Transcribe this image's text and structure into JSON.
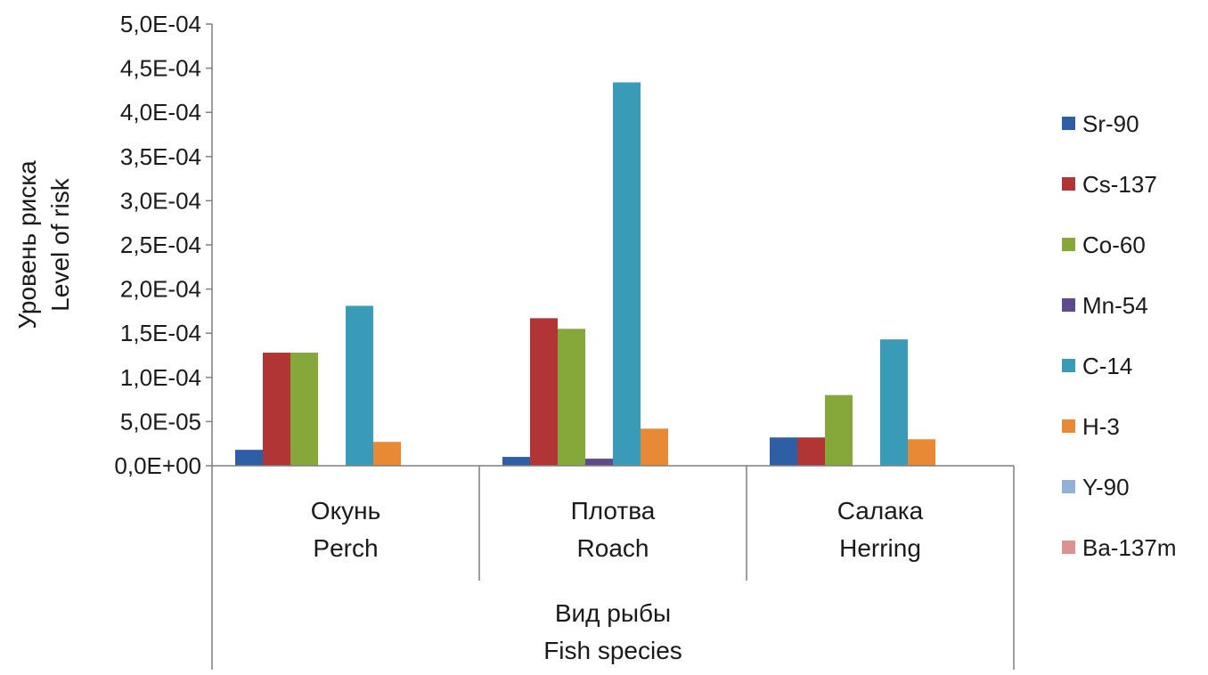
{
  "chart_data": {
    "type": "bar",
    "ylabel_lines": [
      "Уровень риска",
      "Level of risk"
    ],
    "xlabel_lines": [
      "Вид рыбы",
      "Fish species"
    ],
    "categories": [
      {
        "lines": [
          "Окунь",
          "Perch"
        ]
      },
      {
        "lines": [
          "Плотва",
          "Roach"
        ]
      },
      {
        "lines": [
          "Салака",
          "Herring"
        ]
      }
    ],
    "ylim": [
      0,
      0.0005
    ],
    "y_ticks": [
      {
        "value": 0,
        "label": "0,0E+00"
      },
      {
        "value": 5e-05,
        "label": "5,0E-05"
      },
      {
        "value": 0.0001,
        "label": "1,0E-04"
      },
      {
        "value": 0.00015,
        "label": "1,5E-04"
      },
      {
        "value": 0.0002,
        "label": "2,0E-04"
      },
      {
        "value": 0.00025,
        "label": "2,5E-04"
      },
      {
        "value": 0.0003,
        "label": "3,0E-04"
      },
      {
        "value": 0.00035,
        "label": "3,5E-04"
      },
      {
        "value": 0.0004,
        "label": "4,0E-04"
      },
      {
        "value": 0.00045,
        "label": "4,5E-04"
      },
      {
        "value": 0.0005,
        "label": "5,0E-04"
      }
    ],
    "grid": false,
    "legend_position": "right",
    "series": [
      {
        "name": "Sr-90",
        "color": "#2E5FA6",
        "values": [
          1.8e-05,
          1e-05,
          3.2e-05
        ]
      },
      {
        "name": "Cs-137",
        "color": "#B23535",
        "values": [
          0.000128,
          0.000167,
          3.2e-05
        ]
      },
      {
        "name": "Co-60",
        "color": "#86A83A",
        "values": [
          0.000128,
          0.000155,
          8e-05
        ]
      },
      {
        "name": "Mn-54",
        "color": "#5E4A8C",
        "values": [
          0,
          8e-06,
          0
        ]
      },
      {
        "name": "C-14",
        "color": "#3A9BB8",
        "values": [
          0.000181,
          0.000434,
          0.000143
        ]
      },
      {
        "name": "H-3",
        "color": "#E88A35",
        "values": [
          2.7e-05,
          4.2e-05,
          3e-05
        ]
      },
      {
        "name": "Y-90",
        "color": "#93B0D6",
        "values": [
          0,
          0,
          0
        ]
      },
      {
        "name": "Ba-137m",
        "color": "#D99393",
        "values": [
          0,
          0,
          0
        ]
      }
    ]
  }
}
